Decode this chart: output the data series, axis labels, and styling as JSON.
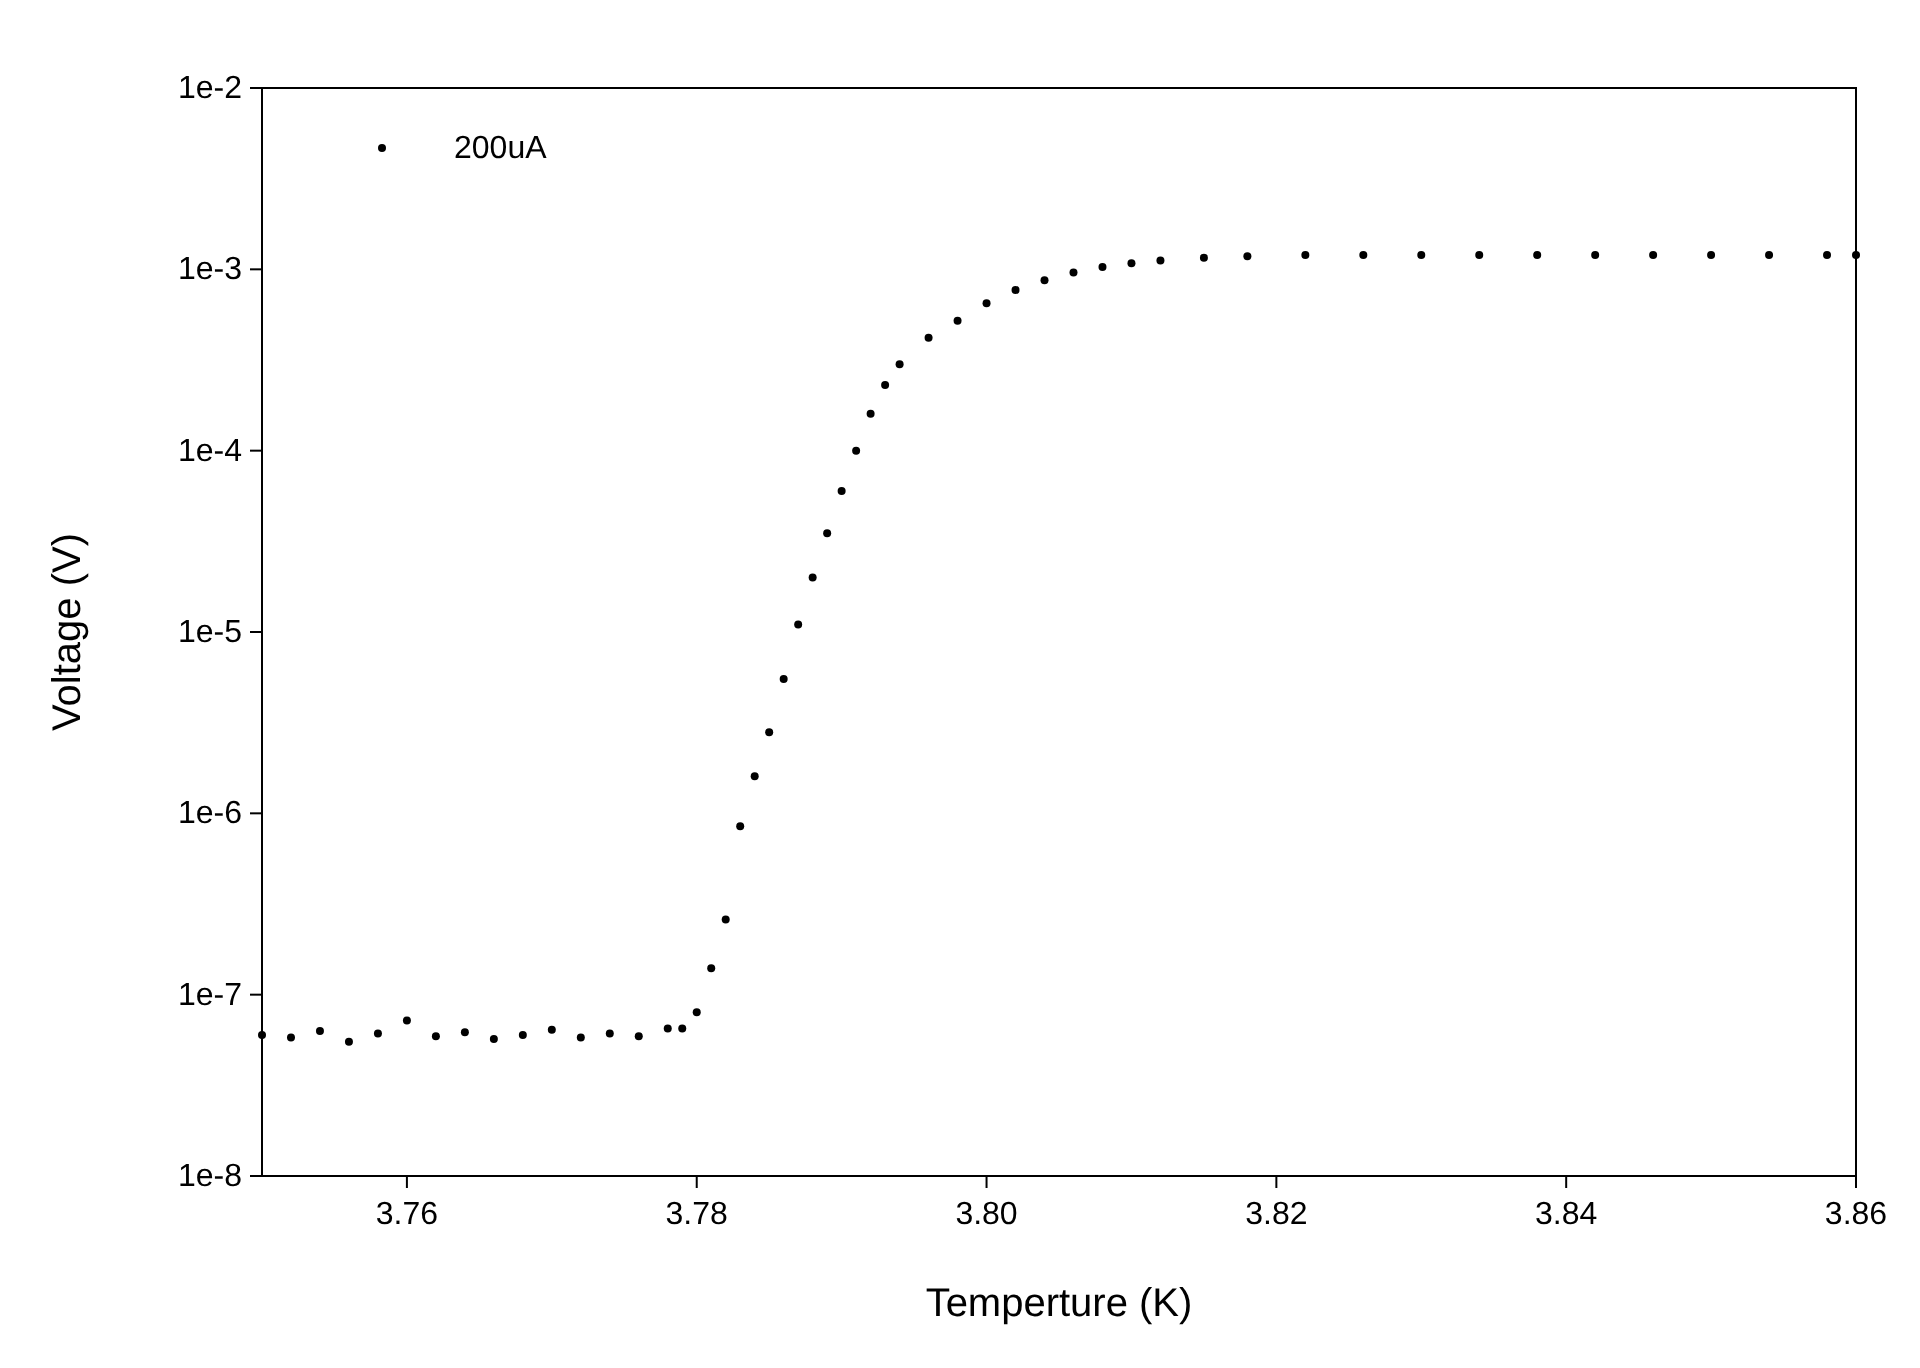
{
  "chart_data": {
    "type": "scatter",
    "xlabel": "Temperture (K)",
    "ylabel": "Voltage (V)",
    "xlim": [
      3.75,
      3.86
    ],
    "ylim": [
      1e-08,
      0.01
    ],
    "log": "y",
    "grid": false,
    "legend": "top left",
    "marker": "circle",
    "xticks": [
      {
        "value": 3.76,
        "label": "3.76"
      },
      {
        "value": 3.78,
        "label": "3.78"
      },
      {
        "value": 3.8,
        "label": "3.80"
      },
      {
        "value": 3.82,
        "label": "3.82"
      },
      {
        "value": 3.84,
        "label": "3.84"
      },
      {
        "value": 3.86,
        "label": "3.86"
      }
    ],
    "yticks": [
      {
        "value": 1e-08,
        "label": "1e-8"
      },
      {
        "value": 1e-07,
        "label": "1e-7"
      },
      {
        "value": 1e-06,
        "label": "1e-6"
      },
      {
        "value": 1e-05,
        "label": "1e-5"
      },
      {
        "value": 0.0001,
        "label": "1e-4"
      },
      {
        "value": 0.001,
        "label": "1e-3"
      },
      {
        "value": 0.01,
        "label": "1e-2"
      }
    ],
    "series": [
      {
        "name": "200uA",
        "color": "#000000",
        "x": [
          3.75,
          3.752,
          3.754,
          3.756,
          3.758,
          3.76,
          3.762,
          3.764,
          3.766,
          3.768,
          3.77,
          3.772,
          3.774,
          3.776,
          3.778,
          3.779,
          3.78,
          3.781,
          3.782,
          3.783,
          3.784,
          3.785,
          3.786,
          3.787,
          3.788,
          3.789,
          3.79,
          3.791,
          3.792,
          3.793,
          3.794,
          3.796,
          3.798,
          3.8,
          3.802,
          3.804,
          3.806,
          3.808,
          3.81,
          3.812,
          3.815,
          3.818,
          3.822,
          3.826,
          3.83,
          3.834,
          3.838,
          3.842,
          3.846,
          3.85,
          3.854,
          3.858,
          3.86
        ],
        "values": [
          6e-08,
          5.8e-08,
          6.3e-08,
          5.5e-08,
          6.1e-08,
          7.2e-08,
          5.9e-08,
          6.2e-08,
          5.7e-08,
          6e-08,
          6.4e-08,
          5.8e-08,
          6.1e-08,
          5.9e-08,
          6.5e-08,
          6.5e-08,
          8e-08,
          1.4e-07,
          2.6e-07,
          8.5e-07,
          1.6e-06,
          2.8e-06,
          5.5e-06,
          1.1e-05,
          2e-05,
          3.5e-05,
          6e-05,
          0.0001,
          0.00016,
          0.00023,
          0.0003,
          0.00042,
          0.00052,
          0.00065,
          0.00077,
          0.00087,
          0.00096,
          0.00103,
          0.00108,
          0.00112,
          0.00116,
          0.00118,
          0.0012,
          0.0012,
          0.0012,
          0.0012,
          0.0012,
          0.0012,
          0.0012,
          0.0012,
          0.0012,
          0.0012,
          0.0012
        ]
      }
    ]
  }
}
